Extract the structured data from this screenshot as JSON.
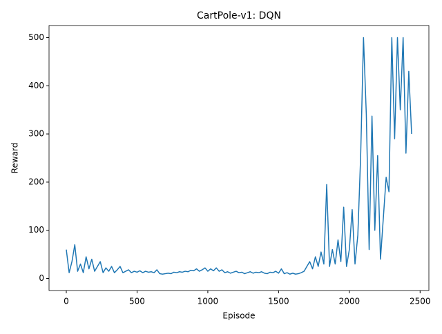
{
  "chart_data": {
    "type": "line",
    "title": "CartPole-v1: DQN",
    "xlabel": "Episode",
    "ylabel": "Reward",
    "x": [
      0,
      20,
      40,
      60,
      80,
      100,
      120,
      140,
      160,
      180,
      200,
      220,
      240,
      260,
      280,
      300,
      320,
      340,
      360,
      380,
      400,
      420,
      440,
      460,
      480,
      500,
      520,
      540,
      560,
      580,
      600,
      620,
      640,
      660,
      680,
      700,
      720,
      740,
      760,
      780,
      800,
      820,
      840,
      860,
      880,
      900,
      920,
      940,
      960,
      980,
      1000,
      1020,
      1040,
      1060,
      1080,
      1100,
      1120,
      1140,
      1160,
      1180,
      1200,
      1220,
      1240,
      1260,
      1280,
      1300,
      1320,
      1340,
      1360,
      1380,
      1400,
      1420,
      1440,
      1460,
      1480,
      1500,
      1520,
      1540,
      1560,
      1580,
      1600,
      1620,
      1640,
      1660,
      1680,
      1700,
      1720,
      1740,
      1760,
      1780,
      1800,
      1820,
      1840,
      1860,
      1880,
      1900,
      1920,
      1940,
      1960,
      1980,
      2000,
      2020,
      2040,
      2060,
      2080,
      2100,
      2120,
      2140,
      2160,
      2180,
      2200,
      2220,
      2240,
      2260,
      2280,
      2300,
      2320,
      2340,
      2360,
      2380,
      2400,
      2420,
      2440
    ],
    "series": [
      {
        "name": "Reward",
        "color": "#1f77b4",
        "values": [
          60,
          12,
          35,
          70,
          15,
          30,
          12,
          45,
          20,
          40,
          15,
          25,
          35,
          12,
          22,
          15,
          25,
          12,
          18,
          25,
          12,
          15,
          18,
          12,
          15,
          13,
          16,
          12,
          15,
          13,
          14,
          12,
          18,
          10,
          9,
          10,
          11,
          10,
          13,
          12,
          14,
          13,
          15,
          14,
          17,
          16,
          20,
          15,
          18,
          22,
          15,
          20,
          16,
          22,
          15,
          18,
          12,
          14,
          11,
          13,
          15,
          12,
          13,
          10,
          12,
          14,
          11,
          13,
          12,
          14,
          11,
          10,
          13,
          12,
          15,
          11,
          20,
          10,
          12,
          9,
          11,
          9,
          10,
          12,
          15,
          25,
          35,
          20,
          45,
          25,
          55,
          30,
          195,
          25,
          60,
          30,
          80,
          35,
          148,
          25,
          60,
          143,
          30,
          90,
          255,
          500,
          340,
          60,
          337,
          100,
          255,
          40,
          125,
          210,
          180,
          500,
          290,
          500,
          350,
          500,
          260,
          430,
          300
        ]
      }
    ],
    "xlim": [
      -122,
      2562
    ],
    "ylim": [
      -25,
      525
    ],
    "xticks": [
      0,
      500,
      1000,
      1500,
      2000,
      2500
    ],
    "yticks": [
      0,
      100,
      200,
      300,
      400,
      500
    ]
  }
}
